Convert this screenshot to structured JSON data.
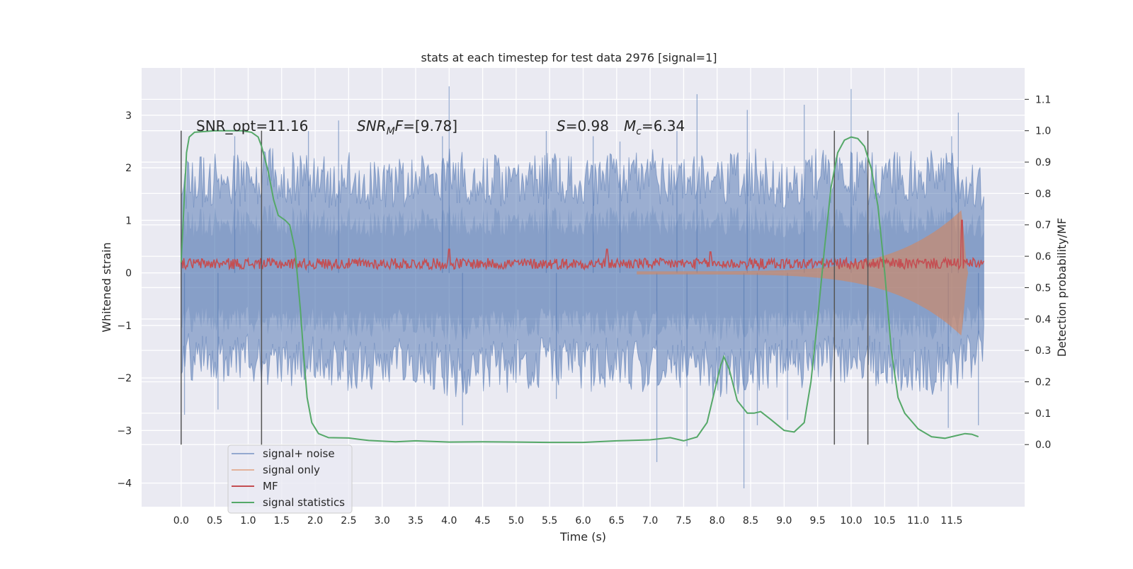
{
  "chart_data": {
    "type": "line",
    "title": "stats at each timestep for test data 2976 [signal=1]",
    "xlabel": "Time (s)",
    "ylabel": "Whitened strain",
    "ylabel_right": "Detection probability/MF",
    "xlim": [
      -0.59,
      12.59
    ],
    "ylim": [
      -4.45,
      3.9
    ],
    "ylim_right": [
      -0.198,
      1.2
    ],
    "x_ticks": [
      0.0,
      0.5,
      1.0,
      1.5,
      2.0,
      2.5,
      3.0,
      3.5,
      4.0,
      4.5,
      5.0,
      5.5,
      6.0,
      6.5,
      7.0,
      7.5,
      8.0,
      8.5,
      9.0,
      9.5,
      10.0,
      10.5,
      11.0,
      11.5
    ],
    "x_tick_labels": [
      "0.0",
      "0.5",
      "1.0",
      "1.5",
      "2.0",
      "2.5",
      "3.0",
      "3.5",
      "4.0",
      "4.5",
      "5.0",
      "5.5",
      "6.0",
      "6.5",
      "7.0",
      "7.5",
      "8.0",
      "8.5",
      "9.0",
      "9.5",
      "10.0",
      "10.5",
      "11.0",
      "11.5"
    ],
    "y_ticks": [
      3,
      2,
      1,
      0,
      -1,
      -2,
      -3,
      -4
    ],
    "y_tick_labels": [
      "3",
      "2",
      "1",
      "0",
      "−1",
      "−2",
      "−3",
      "−4"
    ],
    "y_ticks_right": [
      1.1,
      1.0,
      0.9,
      0.8,
      0.7,
      0.6,
      0.5,
      0.4,
      0.3,
      0.2,
      0.1,
      0.0
    ],
    "y_tick_labels_right": [
      "1.1",
      "1.0",
      "0.9",
      "0.8",
      "0.7",
      "0.6",
      "0.5",
      "0.4",
      "0.3",
      "0.2",
      "0.1",
      "0.0"
    ],
    "grid": true,
    "legend_position": "lower-left",
    "annotations": {
      "snr_opt": "SNR_opt=11.16",
      "snr_mf_name": "SNR",
      "snr_mf_sub": "M",
      "snr_mf_suffix": "F",
      "snr_mf_value": "=[9.78]",
      "s_name": "S",
      "s_value": "=0.98",
      "mc_name": "M",
      "mc_sub": "c",
      "mc_value": "=6.34"
    },
    "vertical_lines_x": [
      0.0,
      1.2,
      9.75,
      10.25
    ],
    "series": [
      {
        "name": "signal+ noise",
        "color": "#4c72b0",
        "axis": "left",
        "x_range": [
          0.0,
          11.98
        ],
        "envelope_upper": [
          [
            0.0,
            2.2
          ],
          [
            0.5,
            2.3
          ],
          [
            1.0,
            2.3
          ],
          [
            1.5,
            2.4
          ],
          [
            2.0,
            2.2
          ],
          [
            2.5,
            2.3
          ],
          [
            3.0,
            2.1
          ],
          [
            3.5,
            2.3
          ],
          [
            4.0,
            2.4
          ],
          [
            4.5,
            2.3
          ],
          [
            5.0,
            2.2
          ],
          [
            5.5,
            2.3
          ],
          [
            6.0,
            2.2
          ],
          [
            6.5,
            2.3
          ],
          [
            7.0,
            2.4
          ],
          [
            7.5,
            2.3
          ],
          [
            8.0,
            2.2
          ],
          [
            8.5,
            2.4
          ],
          [
            9.0,
            2.2
          ],
          [
            9.5,
            2.4
          ],
          [
            10.0,
            2.3
          ],
          [
            10.5,
            2.4
          ],
          [
            11.0,
            2.3
          ],
          [
            11.5,
            2.4
          ],
          [
            11.98,
            2.1
          ]
        ],
        "envelope_lower": [
          [
            0.0,
            -2.0
          ],
          [
            0.5,
            -2.2
          ],
          [
            1.0,
            -2.1
          ],
          [
            1.5,
            -2.2
          ],
          [
            2.0,
            -2.1
          ],
          [
            2.5,
            -2.3
          ],
          [
            3.0,
            -2.2
          ],
          [
            3.5,
            -2.1
          ],
          [
            4.0,
            -2.4
          ],
          [
            4.5,
            -2.3
          ],
          [
            5.0,
            -2.3
          ],
          [
            5.5,
            -2.2
          ],
          [
            6.0,
            -2.3
          ],
          [
            6.5,
            -2.2
          ],
          [
            7.0,
            -2.3
          ],
          [
            7.5,
            -2.2
          ],
          [
            8.0,
            -2.4
          ],
          [
            8.5,
            -2.3
          ],
          [
            9.0,
            -2.2
          ],
          [
            9.5,
            -2.2
          ],
          [
            10.0,
            -2.1
          ],
          [
            10.5,
            -2.2
          ],
          [
            11.0,
            -2.3
          ],
          [
            11.5,
            -2.4
          ],
          [
            11.98,
            -1.8
          ]
        ],
        "spikes": [
          [
            0.05,
            -2.7
          ],
          [
            0.55,
            -2.6
          ],
          [
            0.8,
            2.6
          ],
          [
            1.9,
            2.7
          ],
          [
            2.35,
            2.9
          ],
          [
            3.9,
            2.6
          ],
          [
            4.0,
            3.55
          ],
          [
            4.2,
            -2.9
          ],
          [
            5.45,
            2.7
          ],
          [
            5.6,
            -2.4
          ],
          [
            6.15,
            2.6
          ],
          [
            6.55,
            2.5
          ],
          [
            7.1,
            -3.6
          ],
          [
            7.4,
            2.7
          ],
          [
            7.7,
            3.4
          ],
          [
            7.55,
            -3.3
          ],
          [
            8.4,
            -4.1
          ],
          [
            8.6,
            -2.9
          ],
          [
            8.45,
            3.1
          ],
          [
            9.05,
            -2.8
          ],
          [
            9.3,
            3.2
          ],
          [
            10.0,
            3.5
          ],
          [
            11.5,
            2.6
          ],
          [
            11.6,
            3.05
          ],
          [
            11.45,
            -2.95
          ],
          [
            11.9,
            -2.9
          ]
        ]
      },
      {
        "name": "signal only",
        "color": "#dd8452",
        "axis": "left",
        "chirp": {
          "start_x": 6.8,
          "merger_x": 11.65,
          "end_x": 11.98,
          "start_amplitude": 0.03,
          "peak_amplitude": 1.2,
          "center": 0.0
        }
      },
      {
        "name": "MF",
        "color": "#c44e52",
        "axis": "left",
        "x_range": [
          0.0,
          11.98
        ],
        "band": [
          0.07,
          0.28
        ],
        "peaks": [
          [
            4.0,
            0.45
          ],
          [
            6.35,
            0.45
          ],
          [
            7.9,
            0.4
          ],
          [
            11.65,
            1.0
          ]
        ]
      },
      {
        "name": "signal statistics",
        "color": "#55a868",
        "axis": "right",
        "points": [
          [
            0.0,
            0.58
          ],
          [
            0.05,
            0.8
          ],
          [
            0.08,
            0.93
          ],
          [
            0.12,
            0.98
          ],
          [
            0.2,
            0.995
          ],
          [
            0.5,
            1.0
          ],
          [
            0.9,
            1.0
          ],
          [
            1.05,
            0.995
          ],
          [
            1.15,
            0.98
          ],
          [
            1.2,
            0.95
          ],
          [
            1.3,
            0.87
          ],
          [
            1.38,
            0.78
          ],
          [
            1.45,
            0.73
          ],
          [
            1.55,
            0.715
          ],
          [
            1.62,
            0.7
          ],
          [
            1.7,
            0.62
          ],
          [
            1.78,
            0.43
          ],
          [
            1.83,
            0.28
          ],
          [
            1.88,
            0.15
          ],
          [
            1.95,
            0.07
          ],
          [
            2.05,
            0.035
          ],
          [
            2.2,
            0.022
          ],
          [
            2.5,
            0.021
          ],
          [
            2.8,
            0.013
          ],
          [
            3.2,
            0.009
          ],
          [
            3.5,
            0.012
          ],
          [
            4.0,
            0.008
          ],
          [
            4.5,
            0.009
          ],
          [
            5.0,
            0.008
          ],
          [
            5.5,
            0.007
          ],
          [
            6.0,
            0.007
          ],
          [
            6.5,
            0.012
          ],
          [
            7.0,
            0.015
          ],
          [
            7.3,
            0.022
          ],
          [
            7.5,
            0.012
          ],
          [
            7.7,
            0.024
          ],
          [
            7.85,
            0.07
          ],
          [
            7.95,
            0.16
          ],
          [
            8.05,
            0.25
          ],
          [
            8.1,
            0.28
          ],
          [
            8.18,
            0.24
          ],
          [
            8.3,
            0.14
          ],
          [
            8.45,
            0.1
          ],
          [
            8.55,
            0.1
          ],
          [
            8.65,
            0.105
          ],
          [
            8.8,
            0.08
          ],
          [
            9.0,
            0.045
          ],
          [
            9.15,
            0.04
          ],
          [
            9.3,
            0.07
          ],
          [
            9.4,
            0.2
          ],
          [
            9.5,
            0.4
          ],
          [
            9.6,
            0.62
          ],
          [
            9.7,
            0.82
          ],
          [
            9.8,
            0.93
          ],
          [
            9.9,
            0.97
          ],
          [
            10.0,
            0.98
          ],
          [
            10.1,
            0.975
          ],
          [
            10.2,
            0.95
          ],
          [
            10.3,
            0.88
          ],
          [
            10.4,
            0.76
          ],
          [
            10.5,
            0.55
          ],
          [
            10.6,
            0.3
          ],
          [
            10.7,
            0.15
          ],
          [
            10.8,
            0.1
          ],
          [
            11.0,
            0.05
          ],
          [
            11.2,
            0.025
          ],
          [
            11.4,
            0.02
          ],
          [
            11.6,
            0.03
          ],
          [
            11.7,
            0.035
          ],
          [
            11.8,
            0.033
          ],
          [
            11.9,
            0.025
          ]
        ]
      }
    ]
  }
}
